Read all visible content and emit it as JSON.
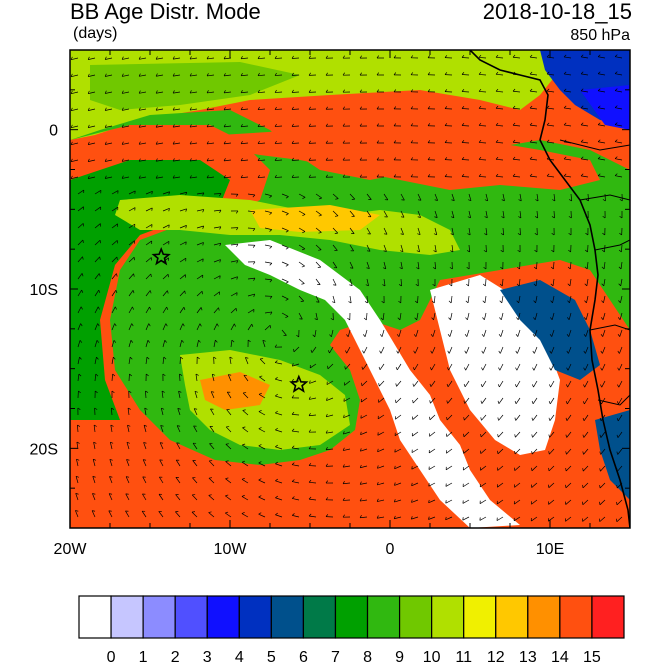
{
  "header": {
    "title": "BB Age Distr. Mode",
    "units": "(days)",
    "datetime": "2018-10-18_15",
    "level": "850 hPa"
  },
  "map": {
    "lat_labels": [
      {
        "text": "0",
        "lat": 0
      },
      {
        "text": "10S",
        "lat": -10
      },
      {
        "text": "20S",
        "lat": -20
      }
    ],
    "lon_labels": [
      {
        "text": "20W",
        "lon": -20
      },
      {
        "text": "10W",
        "lon": -10
      },
      {
        "text": "0",
        "lon": 0
      },
      {
        "text": "10E",
        "lon": 10
      }
    ],
    "extent": {
      "lon_min": -20,
      "lon_max": 15,
      "lat_min": -25,
      "lat_max": 5
    },
    "markers": [
      {
        "name": "star",
        "lon": -14.3,
        "lat": -8.0
      },
      {
        "name": "star",
        "lon": -5.7,
        "lat": -16.0
      }
    ]
  },
  "colorbar": {
    "labels": [
      "0",
      "1",
      "2",
      "3",
      "4",
      "5",
      "6",
      "7",
      "8",
      "9",
      "10",
      "11",
      "12",
      "13",
      "14",
      "15"
    ],
    "colors": [
      "#ffffff",
      "#c6c6ff",
      "#8c8cff",
      "#5050ff",
      "#1010ff",
      "#0030c0",
      "#00508c",
      "#007a48",
      "#00a000",
      "#30b810",
      "#70c800",
      "#b0e000",
      "#f0f000",
      "#ffc800",
      "#ff9000",
      "#ff5010",
      "#ff2020"
    ]
  },
  "colors": {
    "ocean_old": "#ff5010",
    "green_mid": "#30b810",
    "green_dark": "#00a000",
    "young": "#ffffff",
    "land_blue": "#0030c0"
  }
}
